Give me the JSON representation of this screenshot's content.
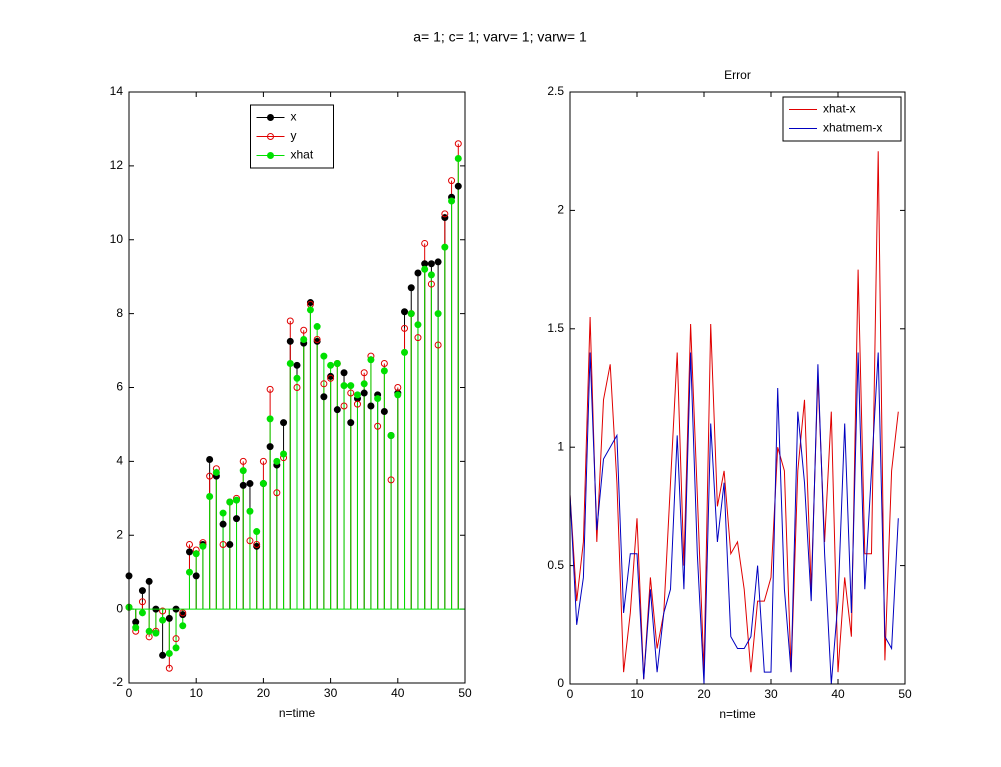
{
  "title": "a= 1; c= 1; varv= 1; varw= 1",
  "chart_data": [
    {
      "type": "stem",
      "xlabel": "n=time",
      "legend": "north",
      "x": [
        0,
        1,
        2,
        3,
        4,
        5,
        6,
        7,
        8,
        9,
        10,
        11,
        12,
        13,
        14,
        15,
        16,
        17,
        18,
        19,
        20,
        21,
        22,
        23,
        24,
        25,
        26,
        27,
        28,
        29,
        30,
        31,
        32,
        33,
        34,
        35,
        36,
        37,
        38,
        39,
        40,
        41,
        42,
        43,
        44,
        45,
        46,
        47,
        48,
        49
      ],
      "xlim": [
        0,
        50
      ],
      "xticks": [
        0,
        10,
        20,
        30,
        40,
        50
      ],
      "ylim": [
        -2,
        14
      ],
      "yticks": [
        -2,
        0,
        2,
        4,
        6,
        8,
        10,
        12,
        14
      ],
      "series": [
        {
          "name": "x",
          "color": "#000000",
          "marker": "filled",
          "values": [
            0.9,
            -0.35,
            0.5,
            0.75,
            0,
            -1.25,
            -0.25,
            0,
            -0.15,
            1.55,
            0.9,
            1.75,
            4.05,
            3.6,
            2.3,
            1.75,
            2.45,
            3.35,
            3.4,
            1.7,
            3.4,
            4.4,
            3.9,
            5.05,
            7.25,
            6.6,
            7.2,
            8.3,
            7.25,
            5.75,
            6.3,
            5.4,
            6.4,
            5.05,
            5.7,
            5.85,
            5.5,
            5.8,
            5.35,
            4.7,
            5.85,
            8.05,
            8.7,
            9.1,
            9.35,
            9.35,
            9.4,
            10.6,
            11.15,
            11.45
          ]
        },
        {
          "name": "y",
          "color": "#e00000",
          "marker": "open",
          "values": [
            0.05,
            -0.6,
            0.2,
            -0.75,
            -0.6,
            -0.05,
            -1.6,
            -0.8,
            -0.1,
            1.75,
            1.6,
            1.8,
            3.6,
            3.8,
            1.75,
            2.9,
            3.0,
            4.0,
            1.85,
            1.75,
            4.0,
            5.95,
            3.15,
            4.1,
            7.8,
            6.0,
            7.55,
            8.25,
            7.3,
            6.1,
            6.25,
            6.65,
            5.5,
            5.85,
            5.55,
            6.4,
            6.85,
            4.95,
            6.65,
            3.5,
            6.0,
            7.6,
            8.0,
            7.35,
            9.9,
            8.8,
            7.15,
            10.7,
            11.6,
            12.6
          ]
        },
        {
          "name": "xhat",
          "color": "#00e000",
          "marker": "filled",
          "values": [
            0.05,
            -0.5,
            -0.1,
            -0.6,
            -0.65,
            -0.3,
            -1.2,
            -1.05,
            -0.45,
            1.0,
            1.5,
            1.7,
            3.05,
            3.7,
            2.6,
            2.9,
            2.95,
            3.75,
            2.65,
            2.1,
            3.4,
            5.15,
            4.0,
            4.2,
            6.65,
            6.25,
            7.3,
            8.1,
            7.65,
            6.85,
            6.6,
            6.65,
            6.05,
            6.05,
            5.8,
            6.1,
            6.75,
            5.7,
            6.45,
            4.7,
            5.8,
            6.95,
            8.0,
            7.7,
            9.2,
            9.05,
            8.0,
            9.8,
            11.05,
            12.2
          ]
        }
      ]
    },
    {
      "type": "line",
      "title": "Error",
      "xlabel": "n=time",
      "legend": "northeast",
      "x": [
        0,
        1,
        2,
        3,
        4,
        5,
        6,
        7,
        8,
        9,
        10,
        11,
        12,
        13,
        14,
        15,
        16,
        17,
        18,
        19,
        20,
        21,
        22,
        23,
        24,
        25,
        26,
        27,
        28,
        29,
        30,
        31,
        32,
        33,
        34,
        35,
        36,
        37,
        38,
        39,
        40,
        41,
        42,
        43,
        44,
        45,
        46,
        47,
        48,
        49
      ],
      "xlim": [
        0,
        50
      ],
      "xticks": [
        0,
        10,
        20,
        30,
        40,
        50
      ],
      "ylim": [
        0,
        2.5
      ],
      "yticks": [
        0,
        0.5,
        1,
        1.5,
        2,
        2.5
      ],
      "series": [
        {
          "name": "xhat-x",
          "color": "#e00000",
          "values": [
            0.8,
            0.35,
            0.6,
            1.55,
            0.6,
            1.2,
            1.35,
            0.85,
            0.05,
            0.3,
            0.7,
            0.02,
            0.45,
            0.15,
            0.3,
            0.85,
            1.4,
            0.5,
            1.52,
            0.8,
            0.05,
            1.52,
            0.75,
            0.9,
            0.55,
            0.6,
            0.4,
            0.05,
            0.35,
            0.35,
            0.45,
            1.0,
            0.9,
            0.05,
            0.9,
            1.2,
            0.4,
            1.3,
            0.6,
            1.15,
            0.05,
            0.45,
            0.2,
            1.75,
            0.55,
            0.55,
            2.25,
            0.1,
            0.9,
            1.15
          ]
        },
        {
          "name": "xhatmem-x",
          "color": "#0000c0",
          "values": [
            0.8,
            0.25,
            0.45,
            1.4,
            0.65,
            0.95,
            1.0,
            1.05,
            0.3,
            0.55,
            0.55,
            0.02,
            0.4,
            0.05,
            0.3,
            0.4,
            1.05,
            0.4,
            1.4,
            0.55,
            0.0,
            1.1,
            0.6,
            0.85,
            0.2,
            0.15,
            0.15,
            0.2,
            0.5,
            0.05,
            0.05,
            1.25,
            0.4,
            0.05,
            1.15,
            0.85,
            0.35,
            1.35,
            0.55,
            0.0,
            0.35,
            1.1,
            0.3,
            1.4,
            0.4,
            0.9,
            1.4,
            0.2,
            0.15,
            0.7
          ]
        }
      ]
    }
  ]
}
